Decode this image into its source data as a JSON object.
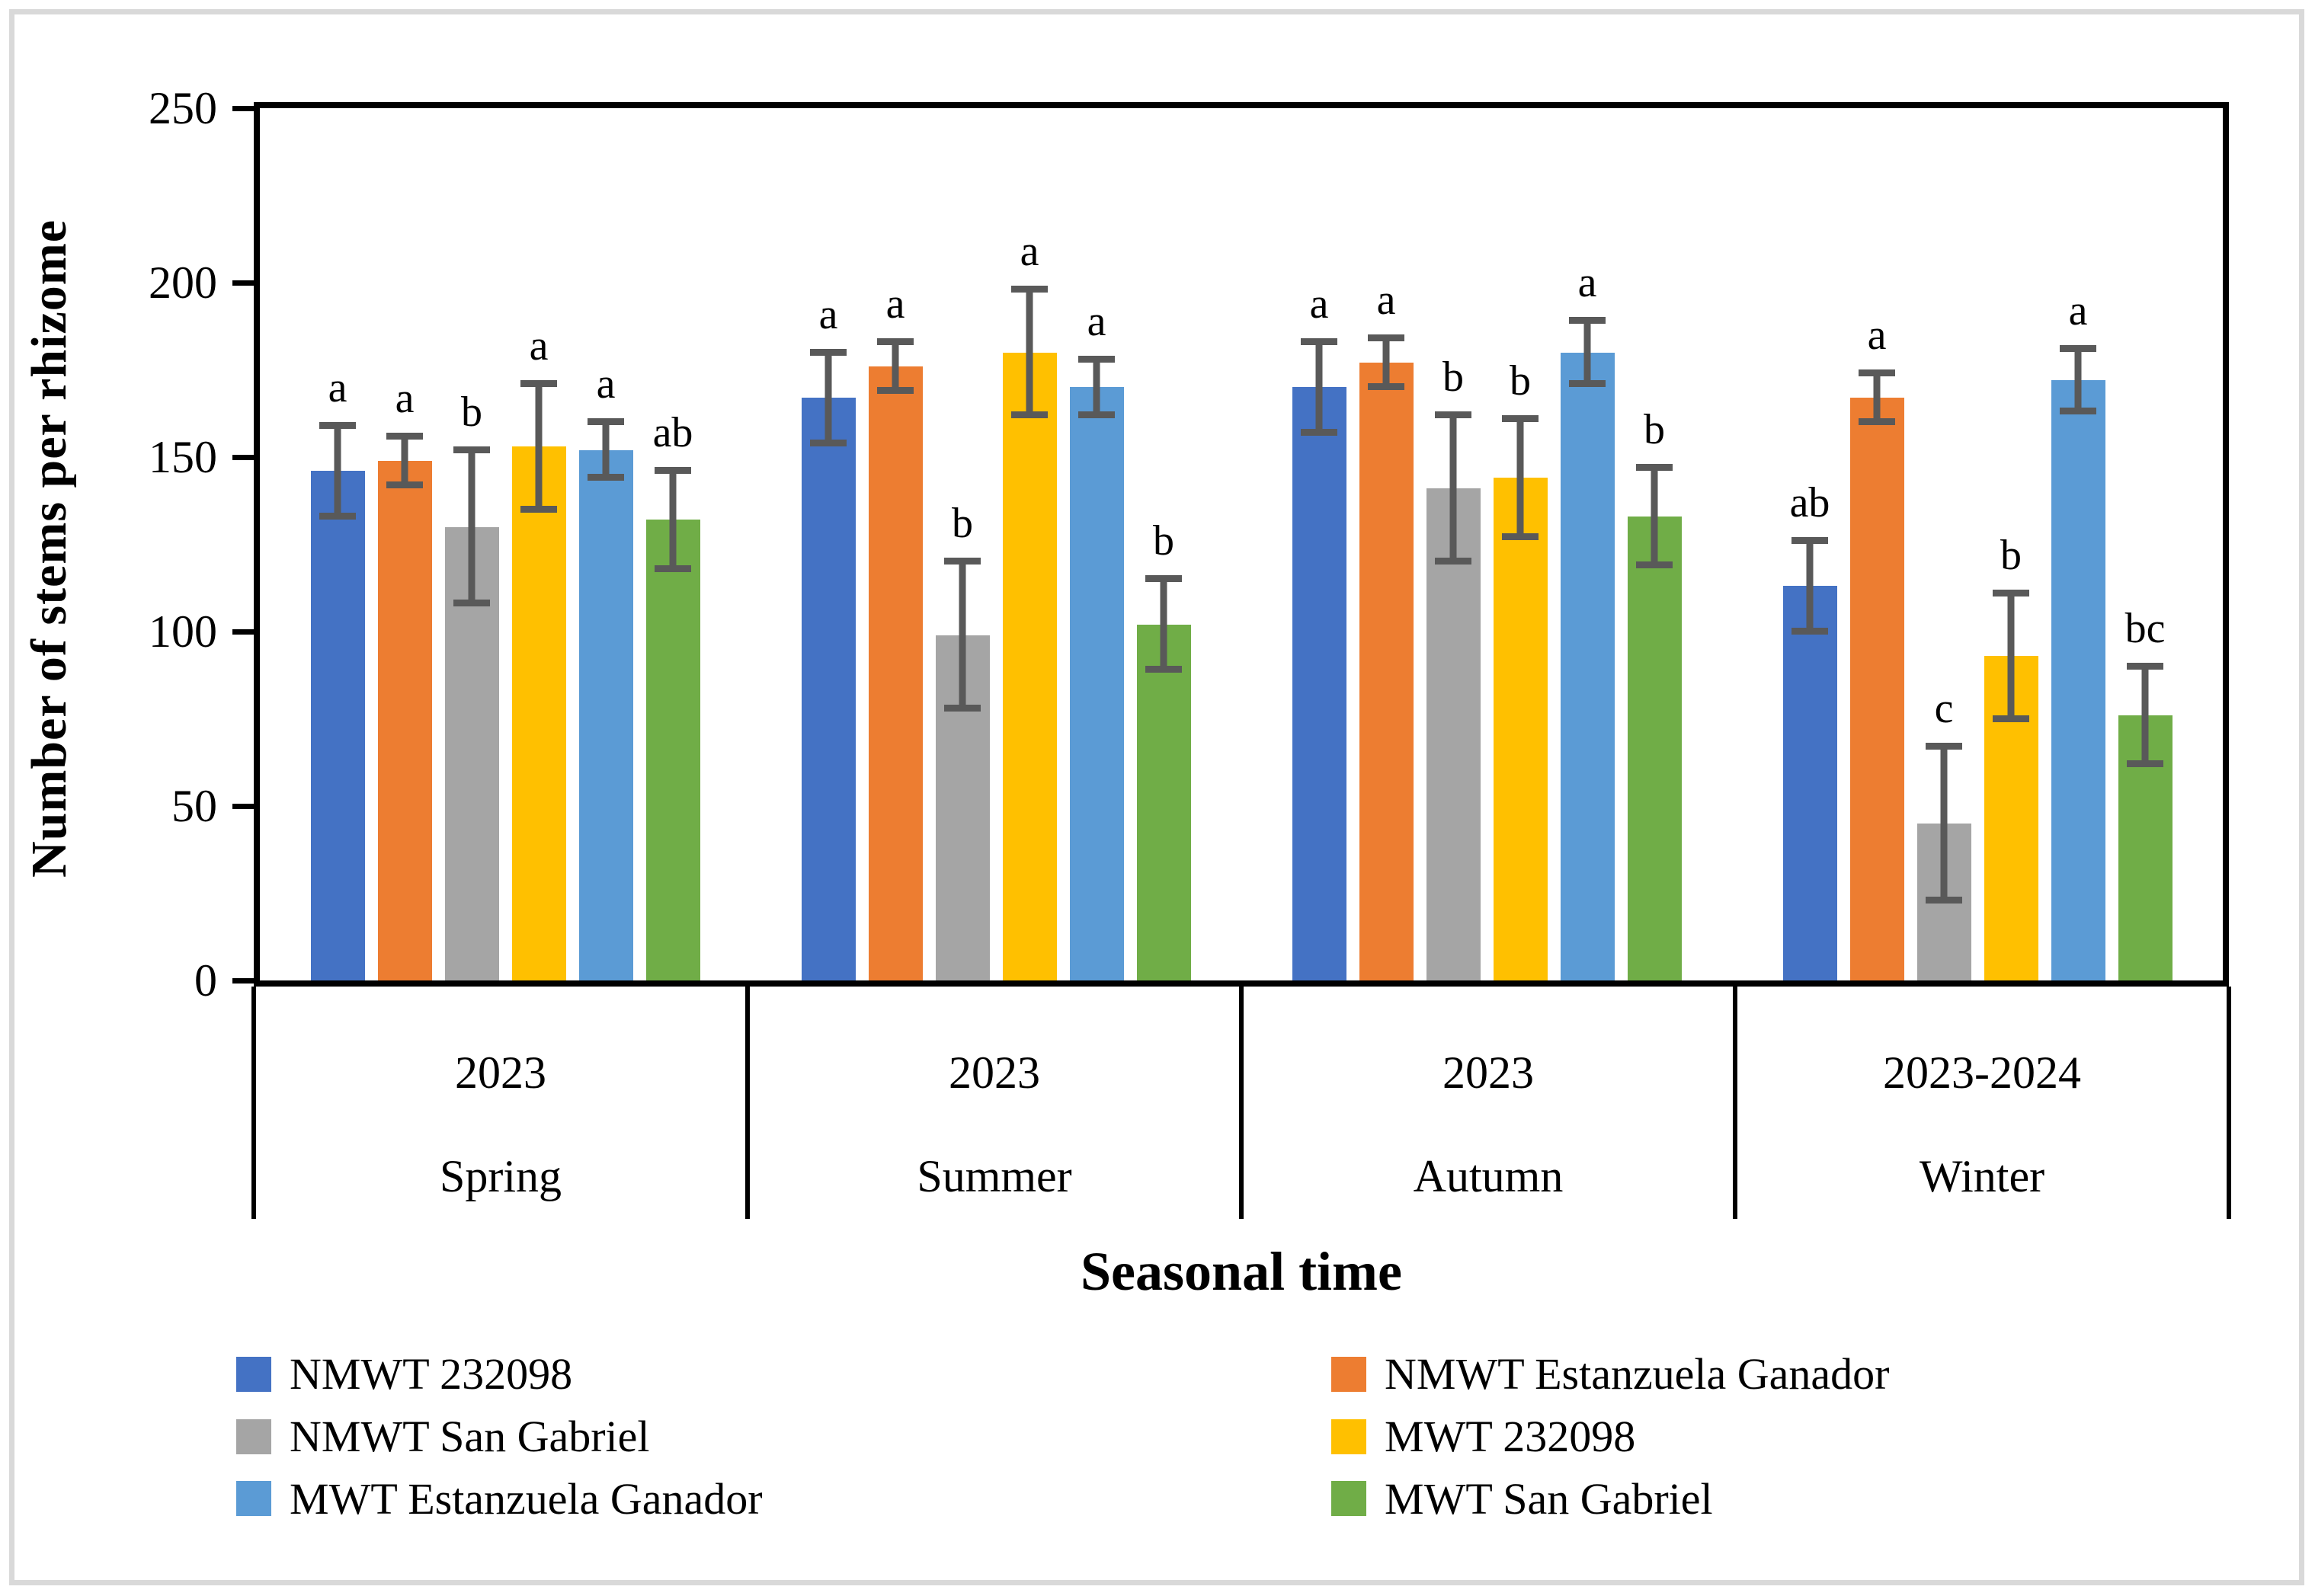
{
  "chart_data": {
    "type": "bar",
    "title": "",
    "ylabel": "Number of stems per rhizome",
    "xlabel": "Seasonal time",
    "ylim": [
      0,
      250
    ],
    "yticks": [
      0,
      50,
      100,
      150,
      200,
      250
    ],
    "grid": false,
    "legend_position": "bottom-two-columns",
    "groups": [
      {
        "year": "2023",
        "season": "Spring"
      },
      {
        "year": "2023",
        "season": "Summer"
      },
      {
        "year": "2023",
        "season": "Autumn"
      },
      {
        "year": "2023-2024",
        "season": "Winter"
      }
    ],
    "series": [
      {
        "name": "NMWT 232098",
        "color": "#4472C4",
        "values": [
          146,
          167,
          170,
          113
        ],
        "errors": [
          13,
          13,
          13,
          13
        ],
        "letters": [
          "a",
          "a",
          "a",
          "ab"
        ]
      },
      {
        "name": "NMWT Estanzuela Ganador",
        "color": "#ED7D31",
        "values": [
          149,
          176,
          177,
          167
        ],
        "errors": [
          7,
          7,
          7,
          7
        ],
        "letters": [
          "a",
          "a",
          "a",
          "a"
        ]
      },
      {
        "name": "NMWT San Gabriel",
        "color": "#A5A5A5",
        "values": [
          130,
          99,
          141,
          45
        ],
        "errors": [
          22,
          21,
          21,
          22
        ],
        "letters": [
          "b",
          "b",
          "b",
          "c"
        ]
      },
      {
        "name": "MWT 232098",
        "color": "#FFC000",
        "values": [
          153,
          180,
          144,
          93
        ],
        "errors": [
          18,
          18,
          17,
          18
        ],
        "letters": [
          "a",
          "a",
          "b",
          "b"
        ]
      },
      {
        "name": "MWT Estanzuela Ganador",
        "color": "#5B9BD5",
        "values": [
          152,
          170,
          180,
          172
        ],
        "errors": [
          8,
          8,
          9,
          9
        ],
        "letters": [
          "a",
          "a",
          "a",
          "a"
        ]
      },
      {
        "name": "MWT San Gabriel",
        "color": "#70AD47",
        "values": [
          132,
          102,
          133,
          76
        ],
        "errors": [
          14,
          13,
          14,
          14
        ],
        "letters": [
          "ab",
          "b",
          "b",
          "bc"
        ]
      }
    ],
    "error_bar_color": "#595959",
    "axis_color": "#000000",
    "frame_border_color": "#D9D9D9"
  }
}
